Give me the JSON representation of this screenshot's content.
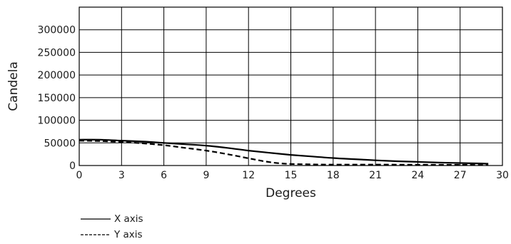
{
  "chart_data": {
    "type": "line",
    "xlabel": "Degrees",
    "ylabel": "Candela",
    "xlim": [
      0,
      30
    ],
    "ylim": [
      0,
      350000
    ],
    "x_ticks": [
      0,
      3,
      6,
      9,
      12,
      15,
      18,
      21,
      24,
      27,
      30
    ],
    "y_ticks": [
      0,
      50000,
      100000,
      150000,
      200000,
      250000,
      300000
    ],
    "x_tick_labels": [
      "0",
      "3",
      "6",
      "9",
      "12",
      "15",
      "18",
      "21",
      "24",
      "27",
      "30"
    ],
    "y_tick_labels": [
      "0",
      "50000",
      "100000",
      "150000",
      "200000",
      "250000",
      "300000"
    ],
    "grid": true,
    "legend_position": "bottom-left",
    "series": [
      {
        "name": "X axis",
        "style": "solid",
        "color": "#000000",
        "x": [
          0,
          1.5,
          3,
          4.5,
          6,
          7.5,
          9,
          10.5,
          12,
          13.5,
          15,
          16.5,
          18,
          19.5,
          21,
          22.5,
          24,
          25.5,
          27,
          28.5,
          29
        ],
        "y": [
          57000,
          57000,
          55000,
          53000,
          50000,
          47000,
          44000,
          39000,
          33000,
          28000,
          23500,
          20000,
          16500,
          14000,
          11500,
          9500,
          8000,
          6500,
          5500,
          4500,
          4000
        ]
      },
      {
        "name": "Y axis",
        "style": "dashed",
        "color": "#000000",
        "x": [
          0,
          1.5,
          3,
          4.5,
          6,
          7.5,
          9,
          10.5,
          12,
          13,
          14,
          15,
          16.5,
          18,
          21,
          24,
          27,
          29
        ],
        "y": [
          55000,
          54000,
          52000,
          49000,
          45000,
          39000,
          33000,
          25000,
          16000,
          10000,
          5500,
          3500,
          2500,
          2000,
          2000,
          1800,
          1500,
          1000
        ]
      }
    ]
  }
}
